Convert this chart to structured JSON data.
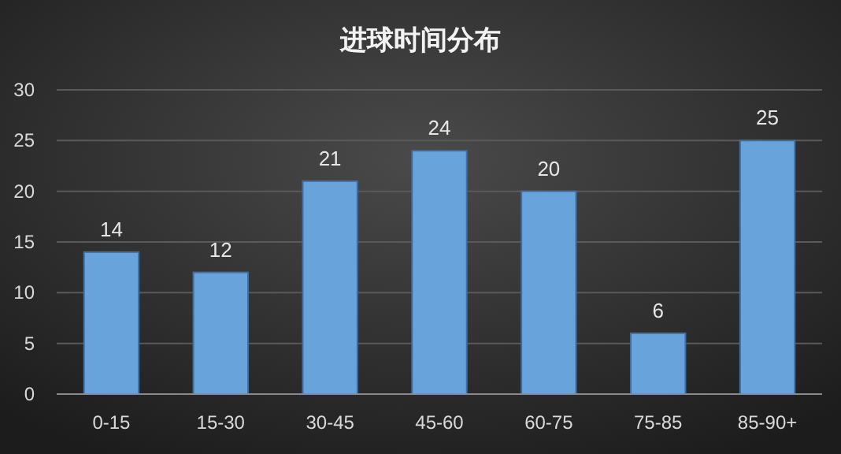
{
  "chart_data": {
    "type": "bar",
    "title": "进球时间分布",
    "categories": [
      "0-15",
      "15-30",
      "30-45",
      "45-60",
      "60-75",
      "75-85",
      "85-90+"
    ],
    "values": [
      14,
      12,
      21,
      24,
      20,
      6,
      25
    ],
    "color": "#69a3dc",
    "ylim": [
      0,
      30
    ],
    "yticks": [
      0,
      5,
      10,
      15,
      20,
      25,
      30
    ],
    "grid": "y",
    "data_labels": true
  }
}
